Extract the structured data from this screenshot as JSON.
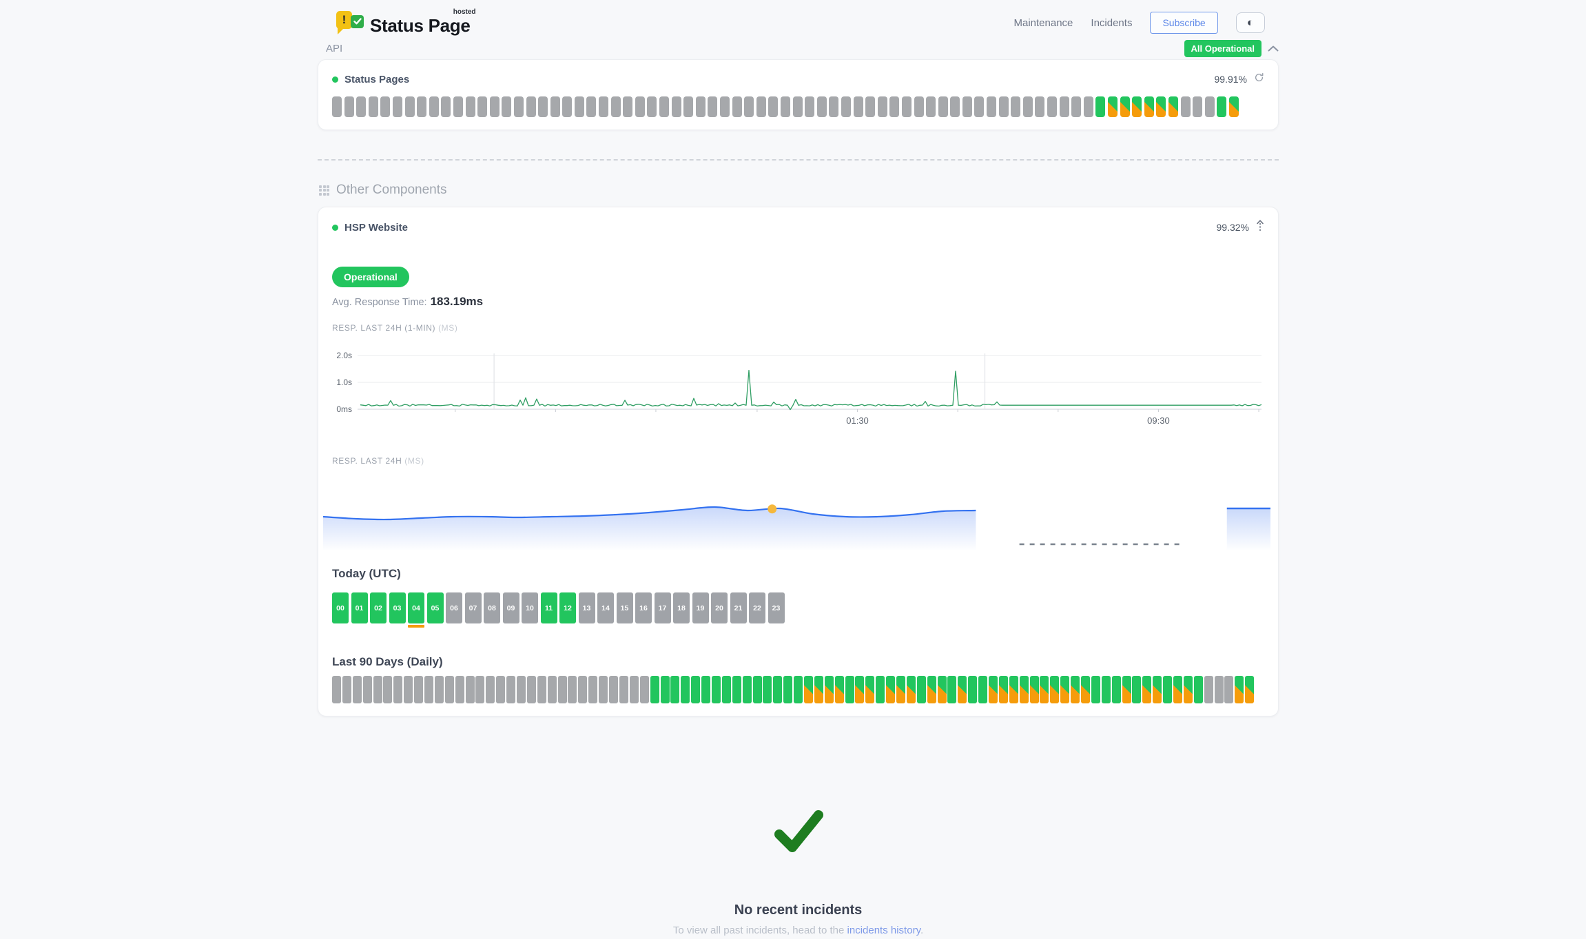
{
  "header": {
    "logo_title": "Status Page",
    "logo_superscript": "hosted",
    "logo_exclamation": "!",
    "nav": [
      {
        "label": "Maintenance"
      },
      {
        "label": "Incidents"
      }
    ],
    "subscribe_label": "Subscribe",
    "theme_toggle_glyph": "◐",
    "overall_status": "All Operational"
  },
  "colors": {
    "green": "#22c55e",
    "orange": "#f59c0b",
    "gray_block": "#a6a8ab",
    "line_green": "#2f9e63",
    "blue": "#3472f0",
    "marker_yellow": "#f5b83d",
    "accent_blue": "#5b86e8",
    "link_blue": "#7d99e8",
    "check_green": "#1e7d20"
  },
  "api_group": {
    "title": "API",
    "component_name": "Status Pages",
    "uptime": "99.91%",
    "blocks_rle": [
      [
        "nodata",
        63
      ],
      [
        "operational",
        1
      ],
      [
        "degraded",
        6
      ],
      [
        "nodata",
        3
      ],
      [
        "operational",
        1
      ],
      [
        "degraded",
        1
      ]
    ]
  },
  "other_components": {
    "title": "Other Components",
    "component_name": "HSP Website",
    "uptime": "99.32%",
    "status_badge": "Operational",
    "avg_response_label": "Avg. Response Time:",
    "avg_response_value": "183.19ms",
    "chart1_label": "RESP. LAST 24H (1-MIN)",
    "chart1_unit": "(MS)",
    "chart2_label": "RESP. LAST 24H",
    "chart2_unit": "(MS)",
    "today_title": "Today (UTC)",
    "hours": [
      {
        "label": "00",
        "state": "up"
      },
      {
        "label": "01",
        "state": "up"
      },
      {
        "label": "02",
        "state": "up"
      },
      {
        "label": "03",
        "state": "up"
      },
      {
        "label": "04",
        "state": "up-incident"
      },
      {
        "label": "05",
        "state": "up"
      },
      {
        "label": "06",
        "state": "nodata"
      },
      {
        "label": "07",
        "state": "nodata"
      },
      {
        "label": "08",
        "state": "nodata"
      },
      {
        "label": "09",
        "state": "nodata"
      },
      {
        "label": "10",
        "state": "nodata"
      },
      {
        "label": "11",
        "state": "up"
      },
      {
        "label": "12",
        "state": "up"
      },
      {
        "label": "13",
        "state": "nodata"
      },
      {
        "label": "14",
        "state": "nodata"
      },
      {
        "label": "15",
        "state": "nodata"
      },
      {
        "label": "16",
        "state": "nodata"
      },
      {
        "label": "17",
        "state": "nodata"
      },
      {
        "label": "18",
        "state": "nodata"
      },
      {
        "label": "19",
        "state": "nodata"
      },
      {
        "label": "20",
        "state": "nodata"
      },
      {
        "label": "21",
        "state": "nodata"
      },
      {
        "label": "22",
        "state": "nodata"
      },
      {
        "label": "23",
        "state": "nodata"
      }
    ],
    "last90_title": "Last 90 Days (Daily)",
    "days_rle": [
      [
        "nodata",
        31
      ],
      [
        "operational",
        15
      ],
      [
        "degraded",
        4
      ],
      [
        "operational",
        1
      ],
      [
        "degraded",
        2
      ],
      [
        "operational",
        1
      ],
      [
        "degraded",
        3
      ],
      [
        "operational",
        1
      ],
      [
        "degraded",
        2
      ],
      [
        "operational",
        1
      ],
      [
        "degraded",
        1
      ],
      [
        "operational",
        2
      ],
      [
        "degraded",
        10
      ],
      [
        "operational",
        3
      ],
      [
        "degraded",
        1
      ],
      [
        "operational",
        1
      ],
      [
        "degraded",
        2
      ],
      [
        "operational",
        1
      ],
      [
        "degraded",
        2
      ],
      [
        "operational",
        1
      ],
      [
        "nodata",
        3
      ],
      [
        "degraded",
        2
      ]
    ]
  },
  "incidents": {
    "title": "No recent incidents",
    "subtitle_prefix": "To view all past incidents, head to the ",
    "link_text": "incidents history",
    "subtitle_suffix": "."
  },
  "chart_data": [
    {
      "type": "line",
      "title": "RESP. LAST 24H (1-MIN)",
      "unit": "ms",
      "line_color": "#2f9e63",
      "ylim_ms": [
        0,
        2200
      ],
      "y_ticks": [
        {
          "label": "2.0s",
          "value": 2000
        },
        {
          "label": "1.0s",
          "value": 1000
        },
        {
          "label": "0ms",
          "value": 0
        }
      ],
      "x_tick_labels": [
        {
          "label": "01:30",
          "pos": 0.553
        },
        {
          "label": "09:30",
          "pos": 0.886
        }
      ],
      "minor_ticks_pos": [
        0.108,
        0.219,
        0.33,
        0.442,
        0.553,
        0.664,
        0.775,
        0.886,
        0.997
      ],
      "grid_vlines_pos": [
        0.151,
        0.694
      ],
      "baseline_ms": 150,
      "noise_ms": 70,
      "spikes": [
        {
          "pos": 0.433,
          "value_ms": 1450
        },
        {
          "pos": 0.663,
          "value_ms": 1420
        }
      ],
      "dips": [
        {
          "pos": 0.478,
          "value_ms": -15
        }
      ],
      "flat_segment": {
        "from": 0.713,
        "to": 0.968,
        "value_ms": 150
      }
    },
    {
      "type": "area",
      "title": "RESP. LAST 24H",
      "unit": "ms",
      "line_color": "#3472f0",
      "marker_color": "#f5b83d",
      "avg_value_ms": 183,
      "wave_profile": [
        0.5,
        0.53,
        0.54,
        0.52,
        0.5,
        0.5,
        0.51,
        0.5,
        0.49,
        0.47,
        0.44,
        0.4,
        0.36,
        0.41,
        0.38,
        0.46,
        0.5,
        0.5,
        0.47,
        0.42,
        0.41
      ],
      "segments": [
        {
          "style": "wave",
          "from": 0.0,
          "to": 0.689,
          "marker_pos": 0.474
        },
        {
          "style": "dashed-no-data",
          "from": 0.735,
          "to": 0.906
        },
        {
          "style": "flat",
          "from": 0.954,
          "to": 1.0,
          "top": 0.38
        }
      ]
    }
  ]
}
